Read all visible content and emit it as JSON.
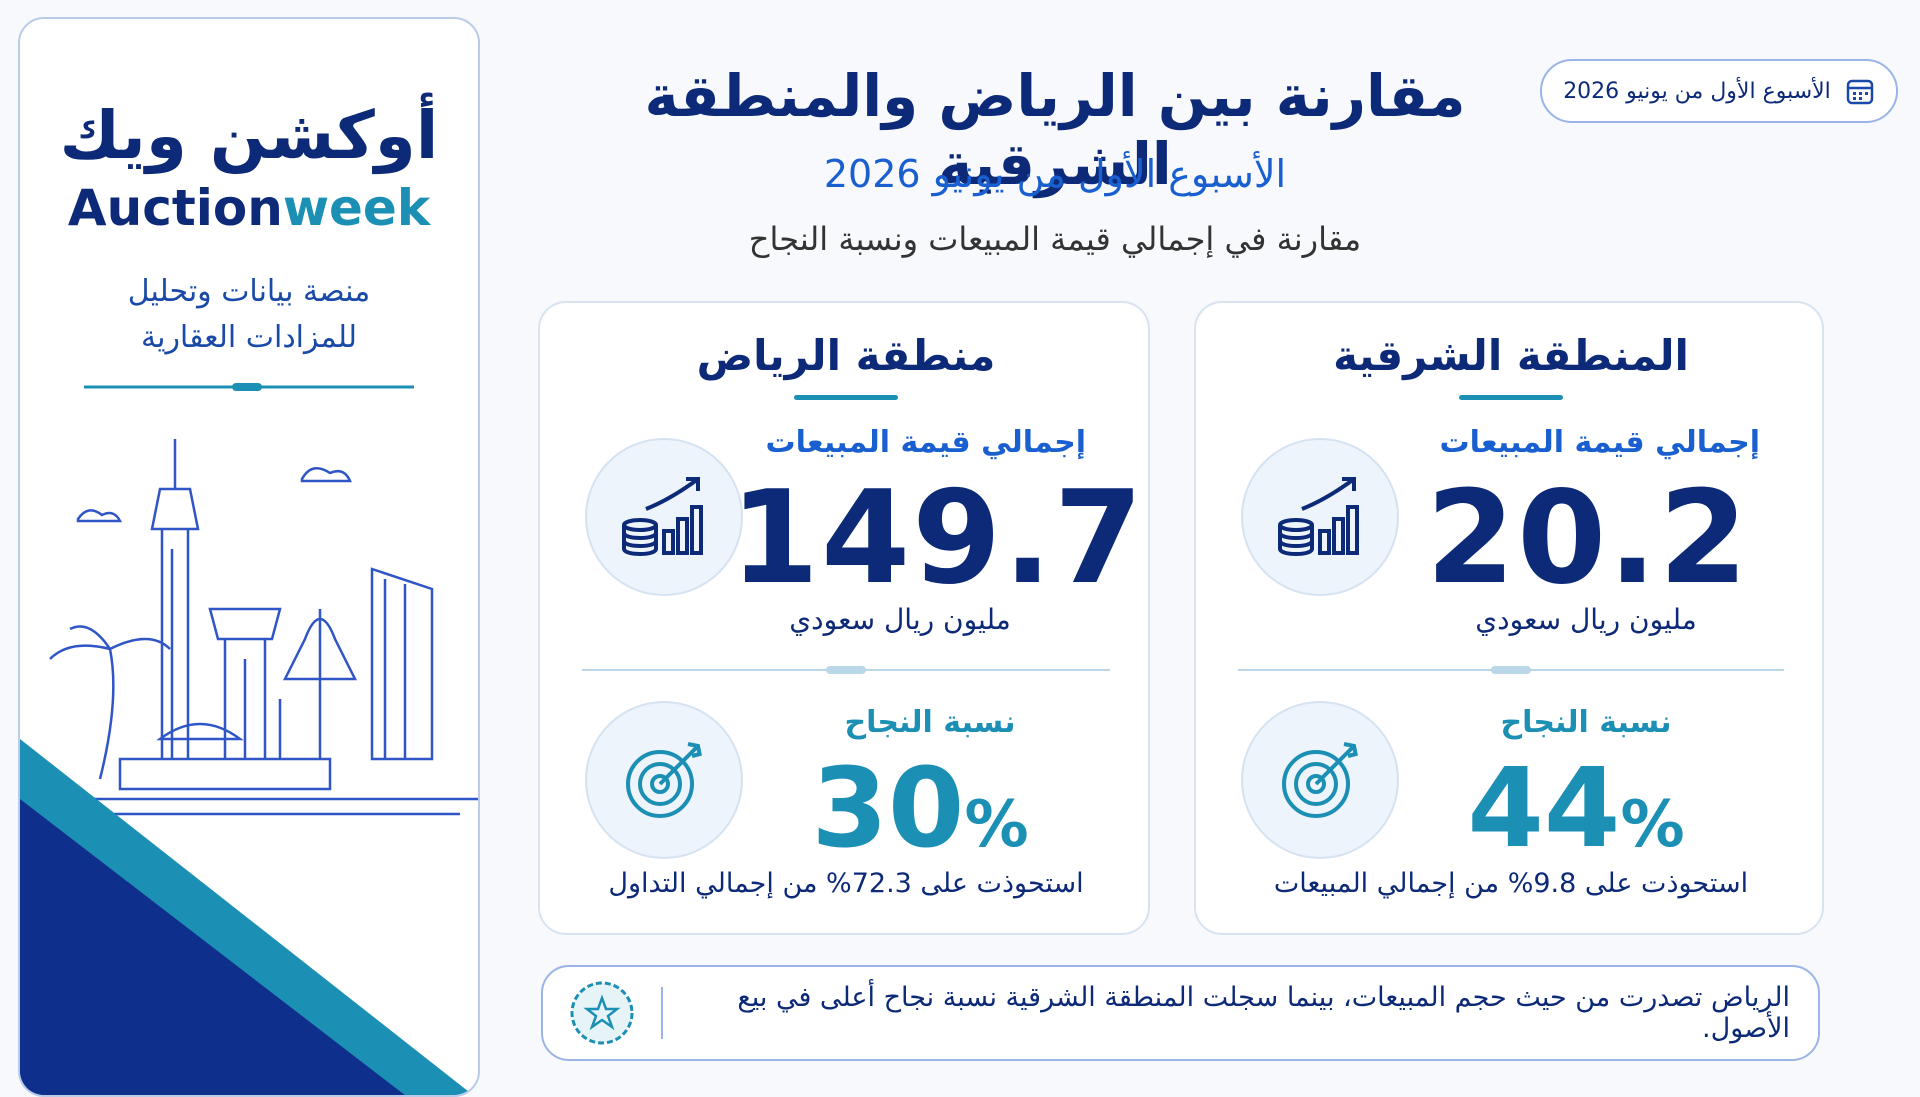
{
  "logo": {
    "arabic": "أوكشن ويك",
    "english_1": "Auction",
    "english_2": "week"
  },
  "tagline": {
    "line_1": "منصة بيانات وتحليل",
    "line_2": "للمزادات العقارية"
  },
  "date_badge": "الأسبوع الأول من يونيو 2026",
  "header": {
    "title": "مقارنة بين الرياض والمنطقة الشرقية",
    "subtitle": "الأسبوع الأول من يونيو 2026",
    "description": "مقارنة في إجمالي قيمة المبيعات ونسبة النجاح"
  },
  "cards": [
    {
      "title": "المنطقة الشرقية",
      "sales_label": "إجمالي قيمة المبيعات",
      "sales_value": 20.2,
      "sales_unit": "مليون ريال سعودي",
      "success_label": "نسبة النجاح",
      "success_value": 44,
      "success_unit": "%",
      "note": "استحوذت على 9.8% من إجمالي المبيعات"
    },
    {
      "title": "منطقة الرياض",
      "sales_label": "إجمالي قيمة المبيعات",
      "sales_value": 149.7,
      "sales_unit": "مليون ريال سعودي",
      "success_label": "نسبة النجاح",
      "success_value": 30,
      "success_unit": "%",
      "note": "استحوذت على 72.3% من إجمالي التداول"
    }
  ],
  "footer": "الرياض تصدرت من حيث حجم المبيعات، بينما سجلت المنطقة الشرقية نسبة نجاح أعلى في بيع الأصول."
}
